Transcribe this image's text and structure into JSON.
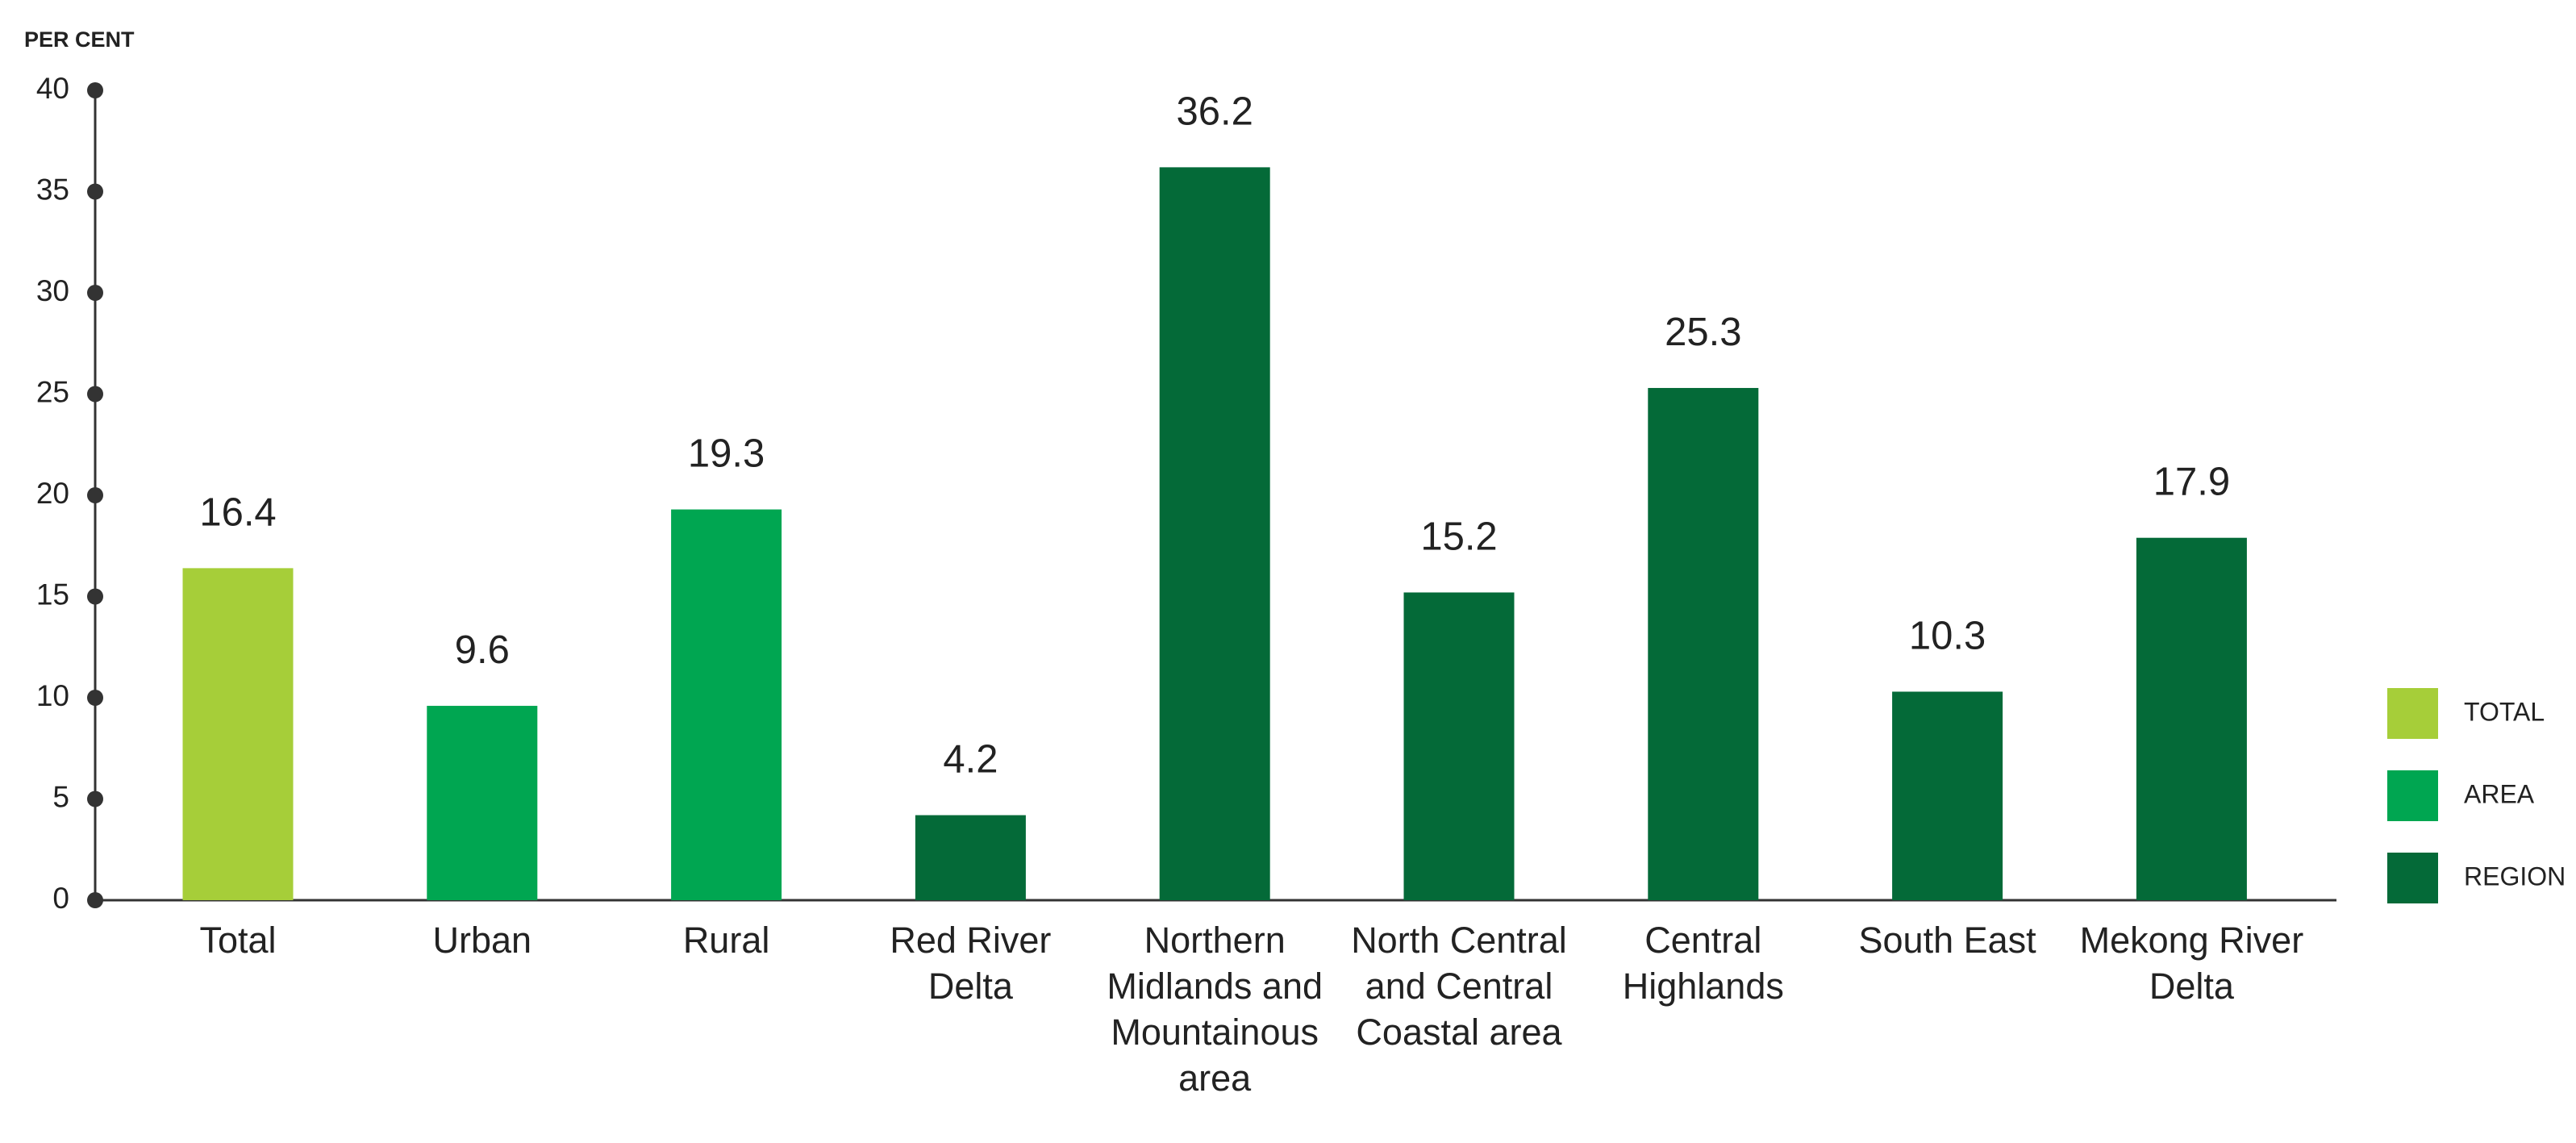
{
  "chart_data": {
    "type": "bar",
    "y_label": "PER CENT",
    "categories": [
      "Total",
      "Urban",
      "Rural",
      "Red River Delta",
      "Northern Midlands and Mountainous area",
      "North Central and Central Coastal area",
      "Central Highlands",
      "South East",
      "Mekong River Delta"
    ],
    "series": [
      {
        "name": "TOTAL",
        "color": "#a6ce39",
        "values": [
          16.4,
          null,
          null,
          null,
          null,
          null,
          null,
          null,
          null
        ]
      },
      {
        "name": "AREA",
        "color": "#00a651",
        "values": [
          null,
          9.6,
          19.3,
          null,
          null,
          null,
          null,
          null,
          null
        ]
      },
      {
        "name": "REGION",
        "color": "#046a38",
        "values": [
          null,
          null,
          null,
          4.2,
          36.2,
          15.2,
          25.3,
          10.3,
          17.9
        ]
      }
    ],
    "ylim": [
      0,
      40
    ],
    "yticks": [
      0,
      5,
      10,
      15,
      20,
      25,
      30,
      35,
      40
    ],
    "grid": false,
    "legend": "right"
  }
}
